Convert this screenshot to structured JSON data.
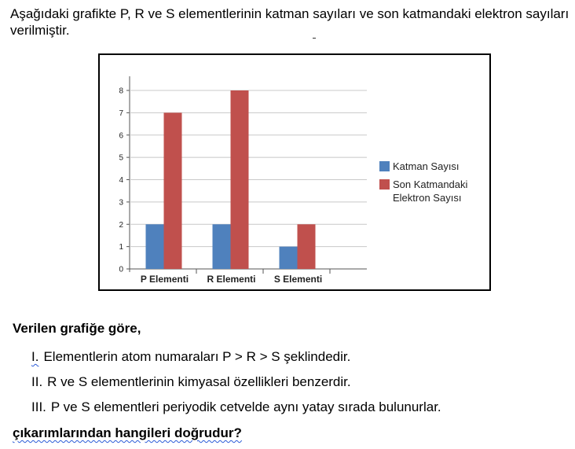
{
  "question": {
    "intro": "Aşağıdaki grafikte P, R ve S elementlerinin katman sayıları ve son katmandaki elektron sayıları verilmiştir.",
    "lead": "Verilen grafiğe göre,",
    "statements": [
      {
        "numeral": "I.",
        "text": "Elementlerin atom numaraları P > R > S şeklindedir."
      },
      {
        "numeral": "II.",
        "text": "R ve S elementlerinin kimyasal özellikleri benzerdir."
      },
      {
        "numeral": "III.",
        "text": "P ve S elementleri periyodik cetvelde aynı yatay sırada bulunurlar."
      }
    ],
    "closing": "çıkarımlarından hangileri doğrudur?"
  },
  "chart_data": {
    "type": "bar",
    "categories": [
      "P Elementi",
      "R Elementi",
      "S Elementi"
    ],
    "series": [
      {
        "name": "Katman Sayısı",
        "values": [
          2,
          2,
          1
        ],
        "color": "#4f81bd"
      },
      {
        "name": "Son Katmandaki Elektron Sayısı",
        "legend_lines": [
          "Son Katmandaki",
          "Elektron Sayısı"
        ],
        "values": [
          7,
          8,
          2
        ],
        "color": "#c0504d"
      }
    ],
    "yticks": [
      0,
      1,
      2,
      3,
      4,
      5,
      6,
      7,
      8
    ],
    "ylim": [
      0,
      8
    ],
    "grid": true,
    "legend_position": "right",
    "title": "",
    "xlabel": "",
    "ylabel": ""
  }
}
